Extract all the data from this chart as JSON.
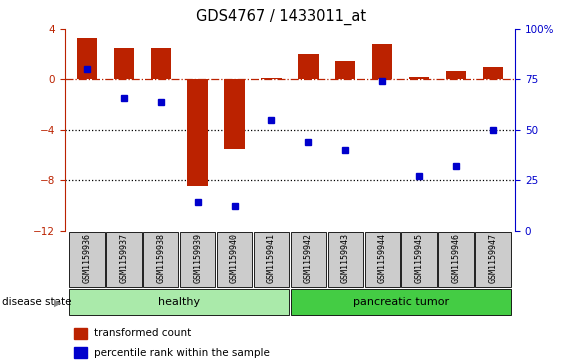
{
  "title": "GDS4767 / 1433011_at",
  "samples": [
    "GSM1159936",
    "GSM1159937",
    "GSM1159938",
    "GSM1159939",
    "GSM1159940",
    "GSM1159941",
    "GSM1159942",
    "GSM1159943",
    "GSM1159944",
    "GSM1159945",
    "GSM1159946",
    "GSM1159947"
  ],
  "bar_values": [
    3.3,
    2.5,
    2.5,
    -8.5,
    -5.5,
    0.1,
    2.0,
    1.5,
    2.8,
    0.2,
    0.7,
    1.0
  ],
  "dot_values": [
    80,
    66,
    64,
    14,
    12,
    55,
    44,
    40,
    74,
    27,
    32,
    50
  ],
  "ylim_left": [
    -12,
    4
  ],
  "ylim_right": [
    0,
    100
  ],
  "yticks_left": [
    4,
    0,
    -4,
    -8,
    -12
  ],
  "yticks_right": [
    100,
    75,
    50,
    25,
    0
  ],
  "bar_color": "#bb2200",
  "dot_color": "#0000cc",
  "healthy_color": "#aaeaaa",
  "tumor_color": "#44cc44",
  "group_boundary": 6,
  "healthy_label": "healthy",
  "tumor_label": "pancreatic tumor",
  "disease_state_label": "disease state",
  "legend_bar_label": "transformed count",
  "legend_dot_label": "percentile rank within the sample",
  "background_color": "#ffffff"
}
